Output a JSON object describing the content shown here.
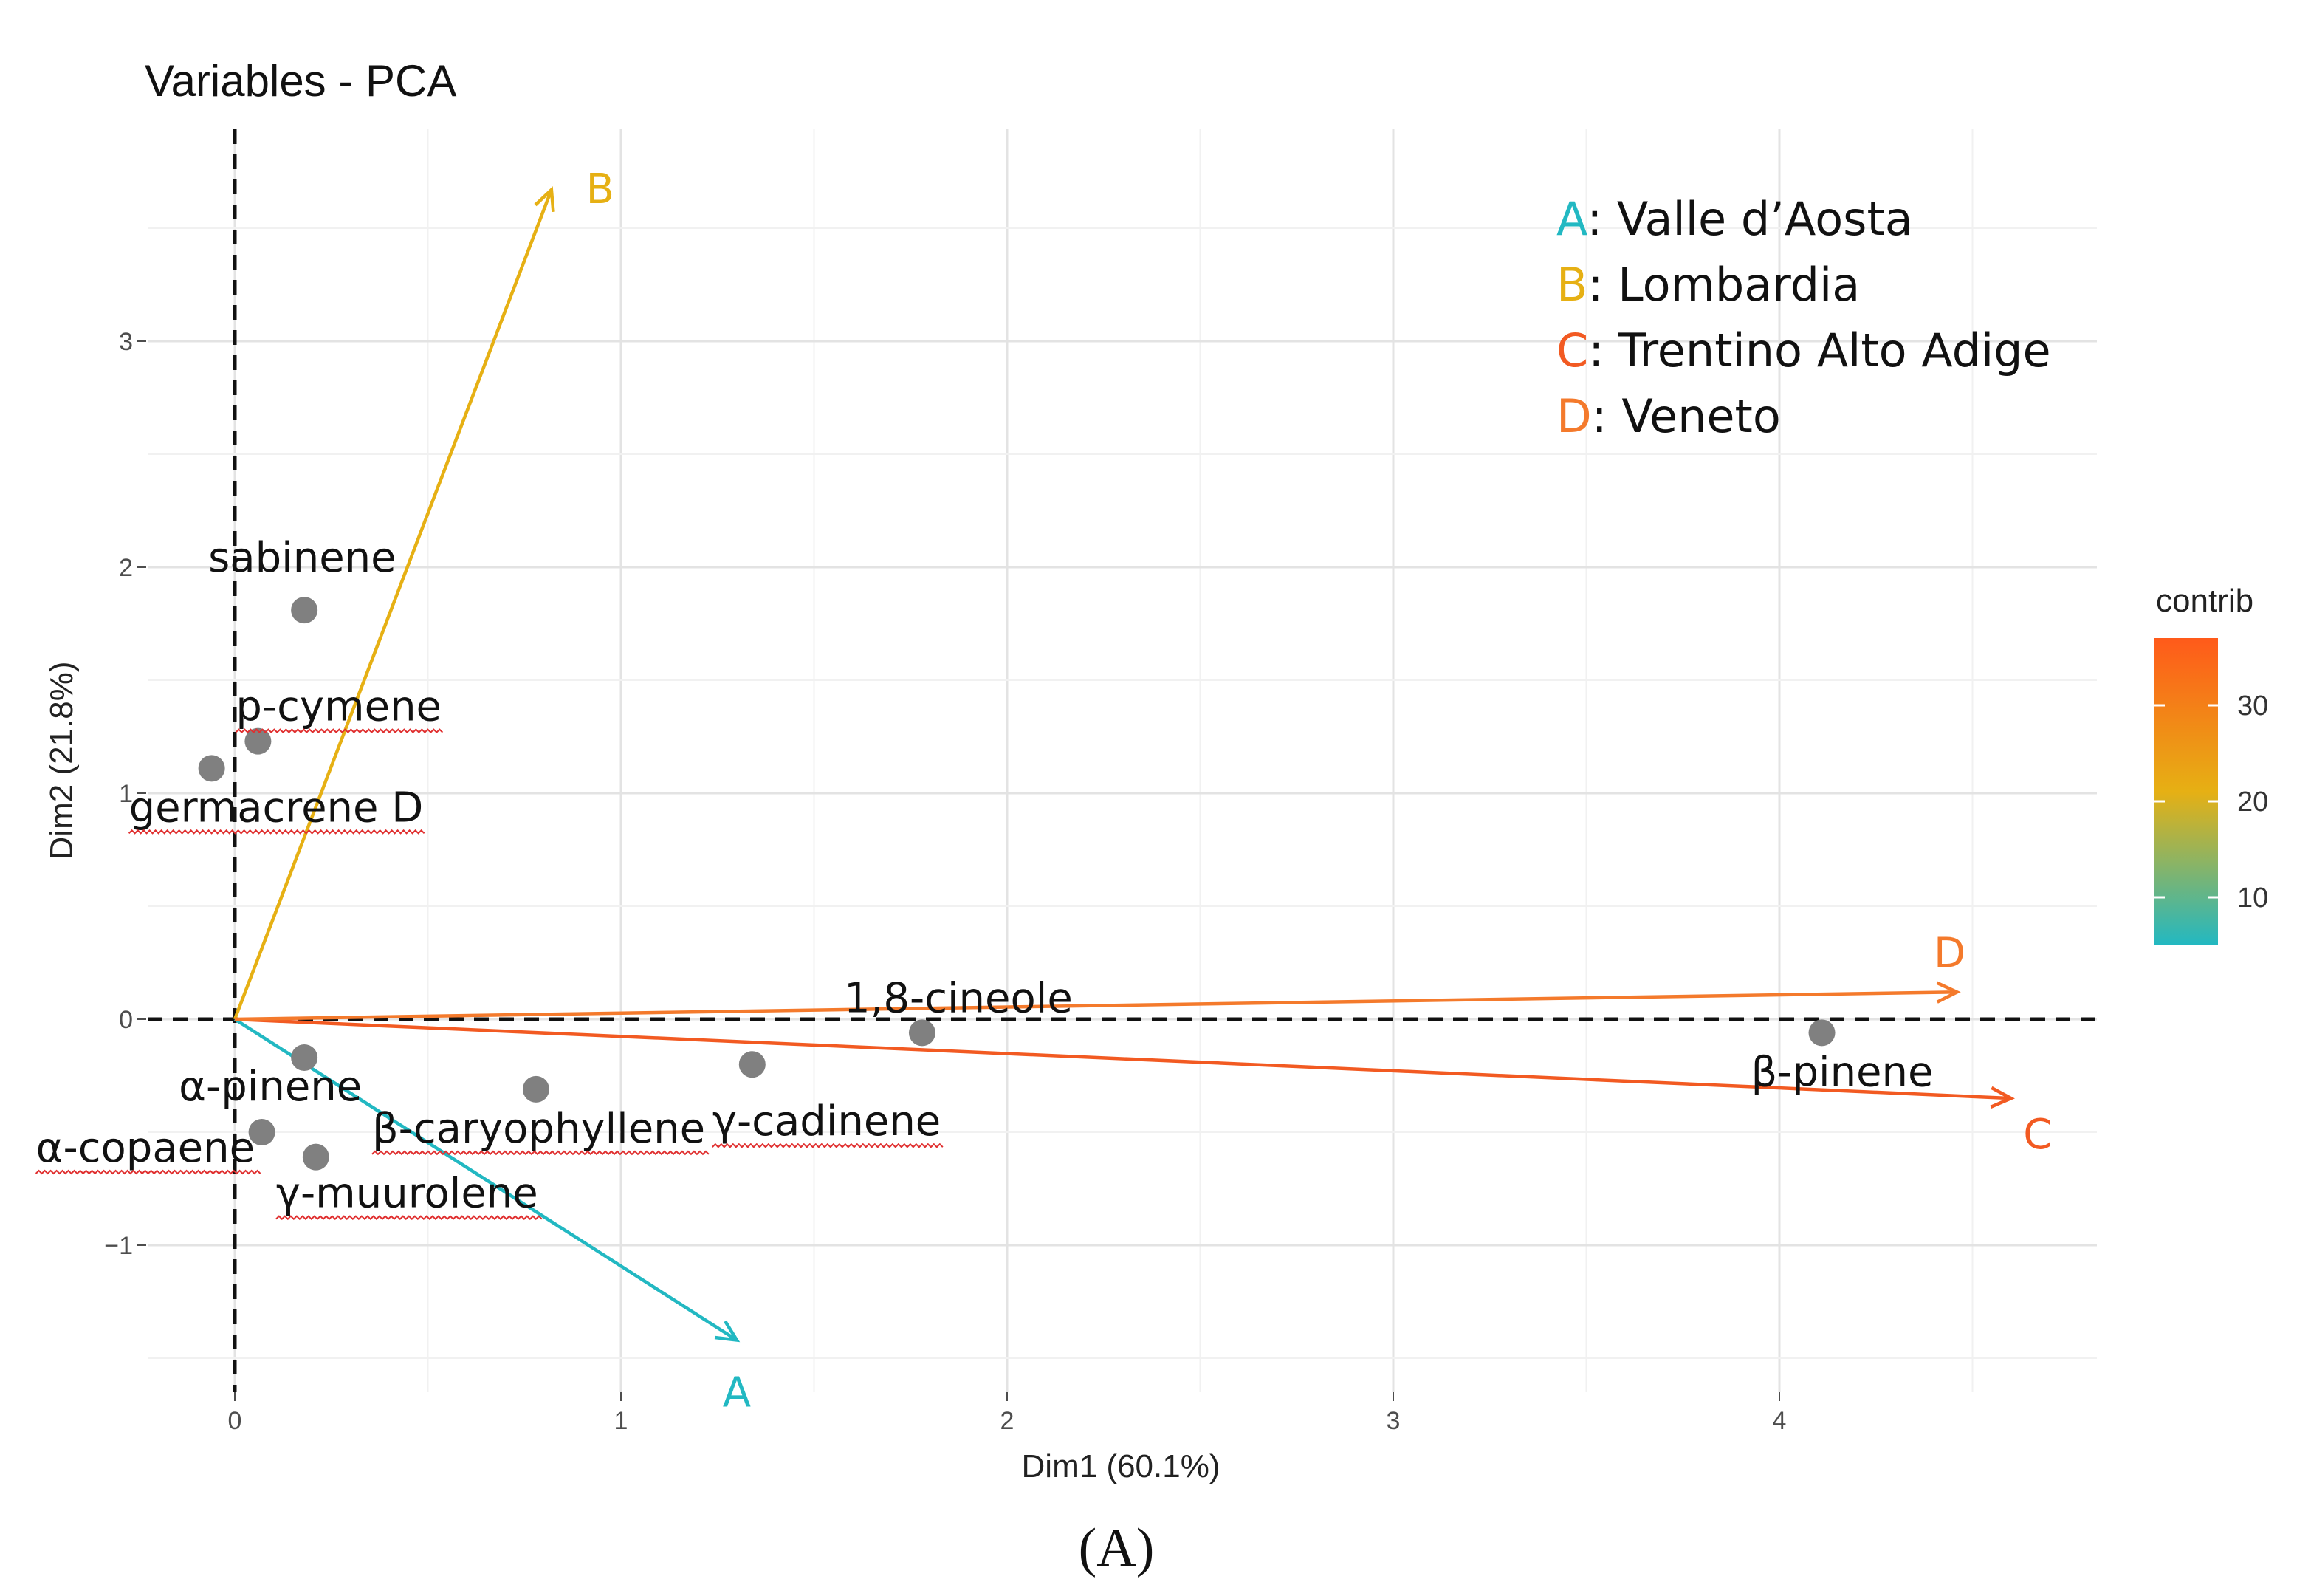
{
  "chart_data": {
    "type": "scatter",
    "title": "Variables - PCA",
    "xlabel": "Dim1 (60.1%)",
    "ylabel": "Dim2 (21.8%)",
    "xlim": [
      -0.22,
      4.8
    ],
    "ylim": [
      -1.75,
      3.9
    ],
    "xticks": [
      0,
      1,
      2,
      3,
      4
    ],
    "yticks": [
      -1,
      0,
      1,
      2,
      3
    ],
    "grid": true,
    "points": [
      {
        "label": "sabinene",
        "x": 0.18,
        "y": 1.81
      },
      {
        "label": "p-cymene",
        "x": 0.06,
        "y": 1.23
      },
      {
        "label": "germacrene D",
        "x": -0.06,
        "y": 1.11
      },
      {
        "label": "1,8-cineole",
        "x": 1.78,
        "y": -0.06
      },
      {
        "label": "β-pinene",
        "x": 4.11,
        "y": -0.06
      },
      {
        "label": "α-pinene",
        "x": 0.18,
        "y": -0.17
      },
      {
        "label": "γ-cadinene",
        "x": 1.34,
        "y": -0.2
      },
      {
        "label": "β-caryophyllene",
        "x": 0.78,
        "y": -0.31
      },
      {
        "label": "α-copaene",
        "x": 0.07,
        "y": -0.5
      },
      {
        "label": "γ-muurolene",
        "x": 0.21,
        "y": -0.61
      }
    ],
    "arrows": [
      {
        "label": "A",
        "x": 1.3,
        "y": -1.42,
        "contrib": 7,
        "color": "#22b8c2"
      },
      {
        "label": "B",
        "x": 0.82,
        "y": 3.67,
        "contrib": 22,
        "color": "#e6b014"
      },
      {
        "label": "C",
        "x": 4.6,
        "y": -0.35,
        "contrib": 37,
        "color": "#f25a22"
      },
      {
        "label": "D",
        "x": 4.46,
        "y": 0.12,
        "contrib": 33,
        "color": "#f47a2c"
      }
    ],
    "legend": [
      {
        "key": "A",
        "name": ": Valle d’Aosta",
        "color": "#22b8c2"
      },
      {
        "key": "B",
        "name": ": Lombardia",
        "color": "#e6b014"
      },
      {
        "key": "C",
        "name": ": Trentino Alto Adige",
        "color": "#f25a22"
      },
      {
        "key": "D",
        "name": ": Veneto",
        "color": "#f47a2c"
      }
    ],
    "colorbar": {
      "title": "contrib",
      "range": [
        5,
        37
      ],
      "ticks": [
        10,
        20,
        30
      ],
      "colors": [
        "#22b8c2",
        "#e6b014",
        "#ff5a1a"
      ]
    },
    "point_color": "#808080"
  },
  "panel_tag": "(A)"
}
